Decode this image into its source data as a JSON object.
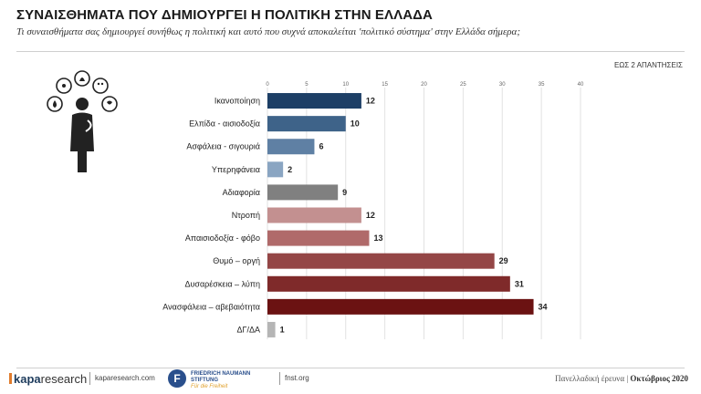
{
  "header": {
    "title": "ΣΥΝΑΙΣΘΗΜΑΤΑ ΠΟΥ ΔΗΜΙΟΥΡΓΕΙ Η ΠΟΛΙΤΙΚΗ ΣΤΗΝ ΕΛΛΑΔΑ",
    "subtitle": "Τι συναισθήματα σας δημιουργεί συνήθως η πολιτική και αυτό που συχνά αποκαλείται 'πολιτικό σύστημα' στην Ελλάδα σήμερα;",
    "note": "ΕΩΣ 2 ΑΠΑΝΤΗΣΕΙΣ"
  },
  "figure_icon": "person-thinking-emotions-icon",
  "chart_data": {
    "type": "bar",
    "orientation": "horizontal",
    "categories": [
      "Ικανοποίηση",
      "Ελπίδα - αισιοδοξία",
      "Ασφάλεια - σιγουριά",
      "Υπερηφάνεια",
      "Αδιαφορία",
      "Ντροπή",
      "Απαισιοδοξία - φόβο",
      "Θυμό – οργή",
      "Δυσαρέσκεια – λύπη",
      "Ανασφάλεια – αβεβαιότητα",
      "ΔΓ/ΔΑ"
    ],
    "values": [
      12,
      10,
      6,
      2,
      9,
      12,
      13,
      29,
      31,
      34,
      1
    ],
    "colors": [
      "#1d3f66",
      "#3e6389",
      "#5f80a4",
      "#8aa5c2",
      "#808080",
      "#c39090",
      "#b06a6a",
      "#944646",
      "#7f2a2a",
      "#6b1212",
      "#b5b5b5"
    ],
    "xlim": [
      0,
      40
    ],
    "xticks": [
      0,
      5,
      10,
      15,
      20,
      25,
      30,
      35,
      40
    ],
    "grid": true
  },
  "footer": {
    "brand1_light": "kapa",
    "brand1_rest": "research",
    "site1": "kaparesearch.com",
    "brand2_mark": "F",
    "brand2_line1": "FRIEDRICH NAUMANN",
    "brand2_line2": "STIFTUNG",
    "brand2_line3": "Für die Freiheit",
    "site2": "fnst.org",
    "survey": "Πανελλαδική έρευνα",
    "date": "Οκτώβριος 2020"
  }
}
